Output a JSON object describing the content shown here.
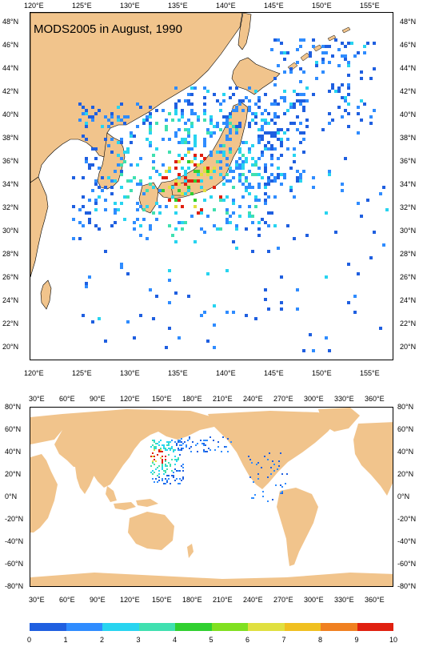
{
  "colors": {
    "land": "#f1c48c",
    "ocean": "#ffffff",
    "scale": [
      "#1f5fe0",
      "#2f8cff",
      "#28d4f0",
      "#40e0b0",
      "#30d030",
      "#80e020",
      "#e0e040",
      "#f0c020",
      "#f08020",
      "#e02010"
    ]
  },
  "top_map": {
    "title": "MODS2005 in August, 1990",
    "lon_labels": [
      "120°E",
      "125°E",
      "130°E",
      "135°E",
      "140°E",
      "145°E",
      "150°E",
      "155°E"
    ],
    "lat_labels": [
      "48°N",
      "46°N",
      "44°N",
      "42°N",
      "40°N",
      "38°N",
      "36°N",
      "34°N",
      "32°N",
      "30°N",
      "28°N",
      "26°N",
      "24°N",
      "22°N",
      "20°N"
    ]
  },
  "bottom_map": {
    "lon_labels": [
      "30°E",
      "60°E",
      "90°E",
      "120°E",
      "150°E",
      "180°E",
      "210°E",
      "240°E",
      "270°E",
      "300°E",
      "330°E",
      "360°E"
    ],
    "lat_labels": [
      "80°N",
      "60°N",
      "40°N",
      "20°N",
      "0°N",
      "-20°N",
      "-40°N",
      "-60°N",
      "-80°N"
    ]
  },
  "colorbar": {
    "labels": [
      "0",
      "1",
      "2",
      "3",
      "4",
      "5",
      "6",
      "7",
      "8",
      "9",
      "10"
    ]
  }
}
